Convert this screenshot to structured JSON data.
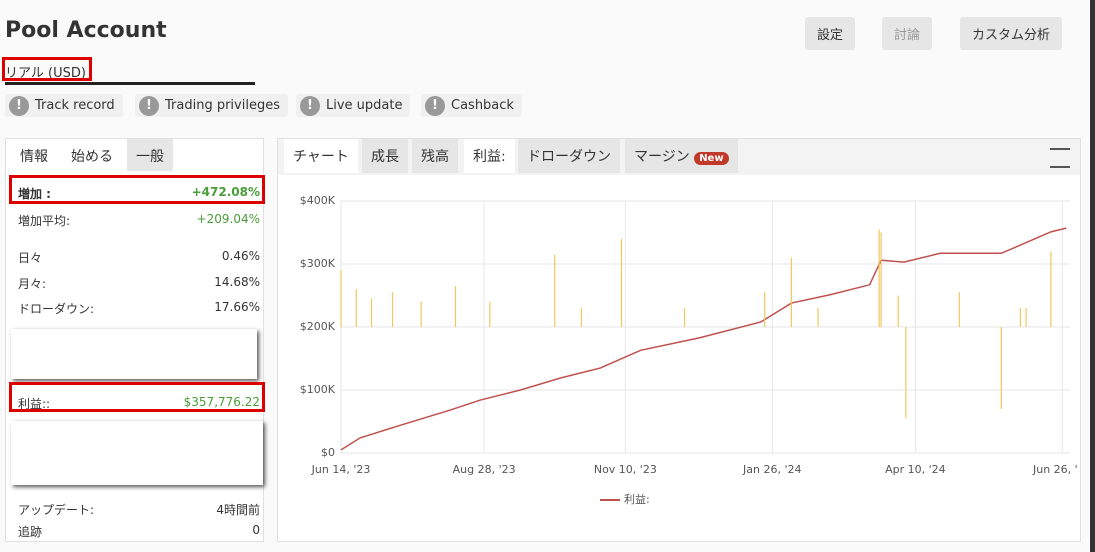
{
  "header": {
    "title": "Pool Account",
    "account_type": "リアル (USD)",
    "buttons": [
      "設定",
      "討論",
      "カスタム分析"
    ],
    "badges": [
      "Track record",
      "Trading privileges",
      "Live update",
      "Cashback"
    ]
  },
  "left_panel": {
    "tabs": [
      "情報",
      "始める",
      "一般"
    ],
    "rows": [
      [
        "増加 :",
        "+472.08%"
      ],
      [
        "増加平均:",
        "+209.04%"
      ],
      [
        "日々",
        "0.46%"
      ],
      [
        "月々:",
        "14.68%"
      ],
      [
        "ドローダウン:",
        "17.66%"
      ],
      [
        "利益::",
        "$357,776.22"
      ],
      [
        "アップデート:",
        "4時間前"
      ],
      [
        "追跡",
        "0"
      ]
    ]
  },
  "chart_tabs": [
    "チャート",
    "成長",
    "残高",
    "利益:",
    "ドローダウン",
    "マージン"
  ],
  "new_badge": "New",
  "chart_data": {
    "type": "line",
    "xlim": [
      0,
      382
    ],
    "xticks": [
      {
        "value": 0,
        "label": "Jun 14, '23"
      },
      {
        "value": 75,
        "label": "Aug 28, '23"
      },
      {
        "value": 149,
        "label": "Nov 10, '23"
      },
      {
        "value": 226,
        "label": "Jan 26, '24"
      },
      {
        "value": 301,
        "label": "Apr 10, '24"
      },
      {
        "value": 378,
        "label": "Jun 26, '24"
      }
    ],
    "ylim": [
      0,
      400000
    ],
    "yticks": [
      {
        "value": 0,
        "label": "$0"
      },
      {
        "value": 100000,
        "label": "$100K"
      },
      {
        "value": 200000,
        "label": "$200K"
      },
      {
        "value": 300000,
        "label": "$300K"
      },
      {
        "value": 400000,
        "label": "$400K"
      }
    ],
    "y2lim": [
      -200000,
      200000
    ],
    "grid": true,
    "series": [
      {
        "name": "利益:",
        "color": "#c0504d",
        "x": [
          0,
          10,
          31,
          57,
          73,
          94,
          115,
          136,
          157,
          188,
          220,
          236,
          256,
          277,
          283,
          295,
          314,
          346,
          356,
          372,
          380
        ],
        "values": [
          5000,
          24000,
          44000,
          68000,
          84000,
          100000,
          119000,
          135000,
          163000,
          183000,
          208000,
          238000,
          251000,
          267000,
          306000,
          303000,
          317000,
          317000,
          330000,
          351000,
          357000
        ]
      },
      {
        "color": "#f2c75c",
        "axis": "y2",
        "x": [
          0,
          8,
          16,
          27,
          42,
          60,
          78,
          112,
          126,
          147,
          180,
          222,
          236,
          250,
          282,
          283,
          292,
          296,
          324,
          346,
          356,
          359,
          372
        ],
        "values": [
          90000,
          60000,
          45000,
          55000,
          40000,
          65000,
          40000,
          115000,
          30000,
          140000,
          30000,
          55000,
          110000,
          30000,
          155000,
          150000,
          50000,
          -145000,
          55000,
          -130000,
          30000,
          30000,
          120000
        ]
      }
    ]
  }
}
